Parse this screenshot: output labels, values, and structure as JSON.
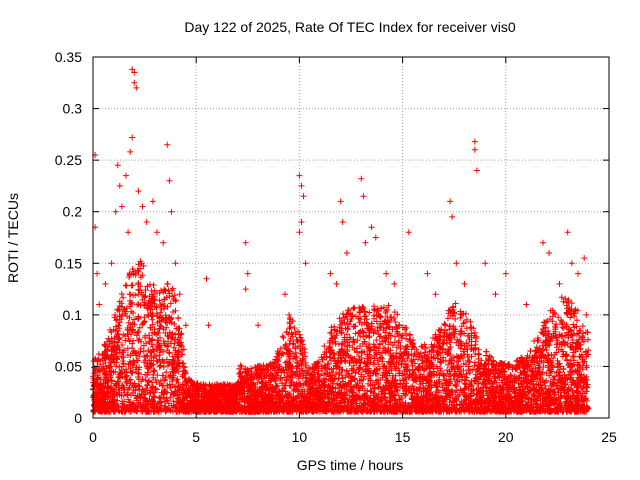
{
  "chart_data": {
    "type": "scatter",
    "marker": "+",
    "title": "Day 122 of 2025, Rate Of TEC Index for receiver vis0",
    "xlabel": "GPS time / hours",
    "ylabel": "ROTI / TECUs",
    "xlim": [
      0,
      25
    ],
    "ylim": [
      0,
      0.35
    ],
    "xticks": [
      0,
      5,
      10,
      15,
      20,
      25
    ],
    "xtick_labels": [
      "0",
      "5",
      "10",
      "15",
      "20",
      "25"
    ],
    "yticks": [
      0,
      0.05,
      0.1,
      0.15,
      0.2,
      0.25,
      0.3,
      0.35
    ],
    "ytick_labels": [
      "0",
      "0.05",
      "0.1",
      "0.15",
      "0.2",
      "0.25",
      "0.3",
      "0.35"
    ],
    "grid": true,
    "color": "#ff0000",
    "series": [
      {
        "name": "ROTI",
        "data_range_hours": [
          0,
          24
        ],
        "points": [
          [
            0.1,
            0.255
          ],
          [
            0.1,
            0.185
          ],
          [
            0.2,
            0.14
          ],
          [
            0.3,
            0.11
          ],
          [
            0.6,
            0.13
          ],
          [
            0.9,
            0.15
          ],
          [
            1.1,
            0.2
          ],
          [
            1.2,
            0.245
          ],
          [
            1.3,
            0.225
          ],
          [
            1.4,
            0.205
          ],
          [
            1.6,
            0.235
          ],
          [
            1.7,
            0.18
          ],
          [
            1.8,
            0.258
          ],
          [
            1.9,
            0.272
          ],
          [
            1.9,
            0.338
          ],
          [
            2.0,
            0.335
          ],
          [
            2.0,
            0.325
          ],
          [
            2.1,
            0.32
          ],
          [
            2.2,
            0.22
          ],
          [
            2.4,
            0.205
          ],
          [
            2.6,
            0.19
          ],
          [
            2.9,
            0.21
          ],
          [
            3.1,
            0.18
          ],
          [
            3.4,
            0.17
          ],
          [
            3.6,
            0.265
          ],
          [
            3.7,
            0.23
          ],
          [
            3.8,
            0.2
          ],
          [
            4.0,
            0.15
          ],
          [
            4.2,
            0.12
          ],
          [
            4.5,
            0.09
          ],
          [
            5.5,
            0.135
          ],
          [
            5.6,
            0.09
          ],
          [
            7.4,
            0.17
          ],
          [
            7.5,
            0.14
          ],
          [
            7.4,
            0.125
          ],
          [
            8.0,
            0.09
          ],
          [
            9.3,
            0.12
          ],
          [
            9.5,
            0.1
          ],
          [
            10.0,
            0.235
          ],
          [
            10.1,
            0.225
          ],
          [
            10.2,
            0.215
          ],
          [
            10.1,
            0.19
          ],
          [
            10.0,
            0.18
          ],
          [
            10.3,
            0.15
          ],
          [
            11.5,
            0.14
          ],
          [
            11.8,
            0.13
          ],
          [
            12.0,
            0.21
          ],
          [
            12.1,
            0.19
          ],
          [
            12.3,
            0.16
          ],
          [
            13.0,
            0.232
          ],
          [
            13.1,
            0.215
          ],
          [
            13.2,
            0.17
          ],
          [
            13.5,
            0.185
          ],
          [
            13.7,
            0.175
          ],
          [
            14.2,
            0.14
          ],
          [
            14.6,
            0.13
          ],
          [
            15.3,
            0.18
          ],
          [
            16.2,
            0.14
          ],
          [
            16.6,
            0.12
          ],
          [
            17.3,
            0.21
          ],
          [
            17.4,
            0.195
          ],
          [
            17.6,
            0.15
          ],
          [
            18.0,
            0.13
          ],
          [
            18.5,
            0.268
          ],
          [
            18.5,
            0.26
          ],
          [
            18.6,
            0.24
          ],
          [
            19.0,
            0.15
          ],
          [
            19.5,
            0.12
          ],
          [
            20.0,
            0.14
          ],
          [
            21.0,
            0.11
          ],
          [
            21.8,
            0.17
          ],
          [
            22.1,
            0.16
          ],
          [
            22.6,
            0.13
          ],
          [
            23.0,
            0.18
          ],
          [
            23.2,
            0.15
          ],
          [
            23.5,
            0.14
          ],
          [
            23.8,
            0.155
          ],
          [
            23.9,
            0.1
          ]
        ]
      }
    ]
  }
}
